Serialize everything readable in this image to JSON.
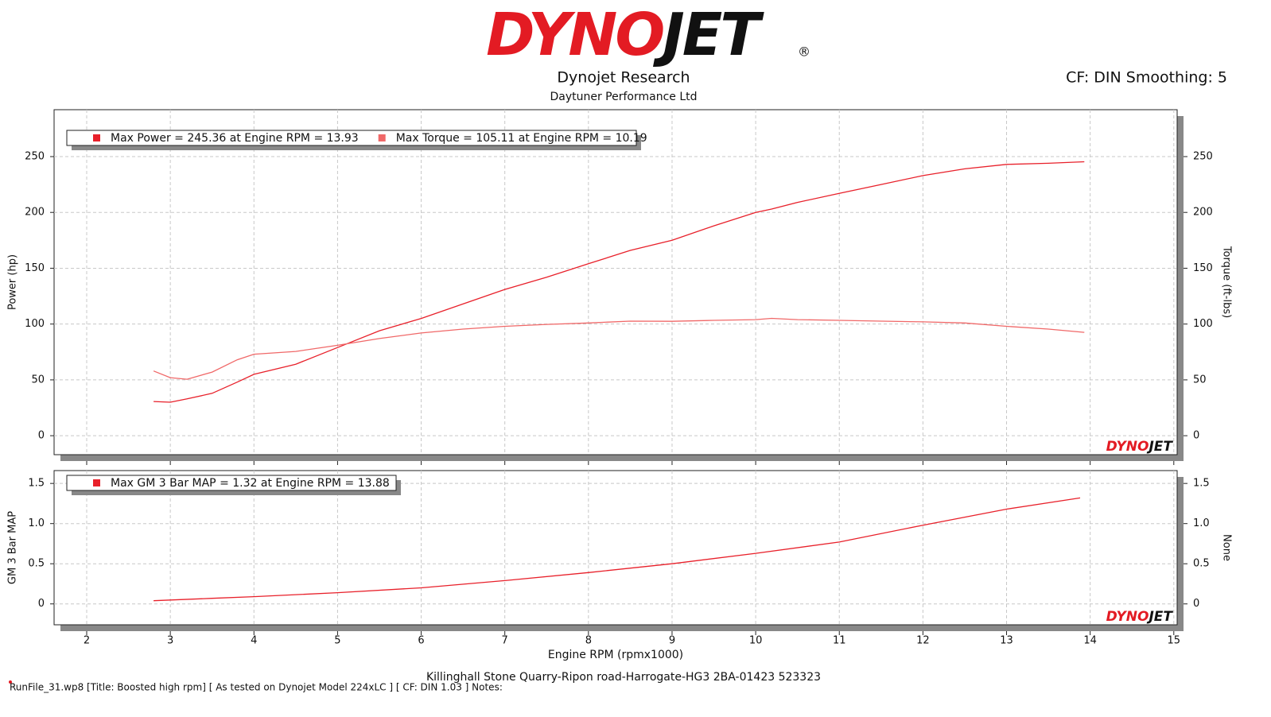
{
  "header": {
    "logo": {
      "part1": "DYNO",
      "part2": "JET",
      "mark": "®"
    },
    "title": "Dynojet Research",
    "subtitle": "Daytuner Performance Ltd",
    "correction": "CF: DIN Smoothing: 5"
  },
  "chart_data": [
    {
      "type": "line",
      "ylabel": "Power (hp)",
      "y2label": "Torque (ft-lbs)",
      "x": [
        2.8,
        3.0,
        3.2,
        3.5,
        3.8,
        4.0,
        4.5,
        5.0,
        5.5,
        6.0,
        6.5,
        7.0,
        7.5,
        8.0,
        8.5,
        9.0,
        9.5,
        10.0,
        10.19,
        10.5,
        11.0,
        11.5,
        12.0,
        12.5,
        13.0,
        13.5,
        13.93
      ],
      "series": [
        {
          "name": "Max Power = 245.36 at Engine RPM = 13.93",
          "color": "#e8202a",
          "values": [
            30.6,
            30,
            33,
            38,
            48,
            55,
            64,
            79,
            94,
            105,
            118,
            131,
            142,
            154,
            166,
            175,
            188,
            200,
            203,
            209,
            217,
            225,
            233,
            239,
            243,
            244,
            245.36
          ]
        },
        {
          "name": "Max Torque = 105.11 at Engine RPM = 10.19",
          "color": "#f06868",
          "axis": "y2",
          "values": [
            58,
            52,
            50.6,
            57,
            68,
            73,
            75.5,
            81,
            87,
            92,
            95.5,
            98,
            99.7,
            101,
            102.6,
            102.5,
            103.3,
            104,
            105.11,
            104,
            103.3,
            102.6,
            102,
            101,
            98,
            95.5,
            92.6
          ]
        }
      ],
      "xlim": [
        1.61,
        15.04
      ],
      "xticks": [
        2,
        3,
        4,
        5,
        6,
        7,
        8,
        9,
        10,
        11,
        12,
        13,
        14,
        15
      ],
      "ylim": [
        -17,
        292
      ],
      "yticks": [
        0,
        50,
        100,
        150,
        200,
        250
      ],
      "y2lim": [
        -17,
        292
      ],
      "y2ticks": [
        0,
        50,
        100,
        150,
        200,
        250
      ],
      "grid": true
    },
    {
      "type": "line",
      "ylabel": "GM 3 Bar MAP",
      "y2label": "None",
      "xlabel": "Engine RPM (rpmx1000)",
      "x": [
        2.8,
        3.5,
        4.0,
        5.0,
        6.0,
        7.0,
        8.0,
        9.0,
        10.0,
        11.0,
        12.0,
        13.0,
        13.88
      ],
      "series": [
        {
          "name": "Max GM 3 Bar MAP = 1.32 at Engine RPM = 13.88",
          "color": "#e8202a",
          "values": [
            0.04,
            0.07,
            0.09,
            0.14,
            0.2,
            0.29,
            0.39,
            0.5,
            0.63,
            0.77,
            0.98,
            1.18,
            1.32
          ]
        }
      ],
      "xlim": [
        1.61,
        15.04
      ],
      "xticks": [
        2,
        3,
        4,
        5,
        6,
        7,
        8,
        9,
        10,
        11,
        12,
        13,
        14,
        15
      ],
      "ylim": [
        -0.26,
        1.66
      ],
      "yticks": [
        0,
        0.5,
        {
          "value": 1,
          "label": "1.0"
        },
        1.5
      ],
      "y2lim": [
        -0.26,
        1.66
      ],
      "y2ticks": [
        0,
        0.5,
        {
          "value": 1,
          "label": "1.0"
        },
        1.5
      ],
      "grid": true
    }
  ],
  "footer": {
    "location": "Killinghall Stone Quarry-Ripon road-Harrogate-HG3 2BA-01423 523323",
    "runfile": "RunFile_31.wp8 [Title: Boosted high rpm]  [ As tested on Dynojet Model 224xLC ] [ CF: DIN 1.03 ] Notes:"
  }
}
